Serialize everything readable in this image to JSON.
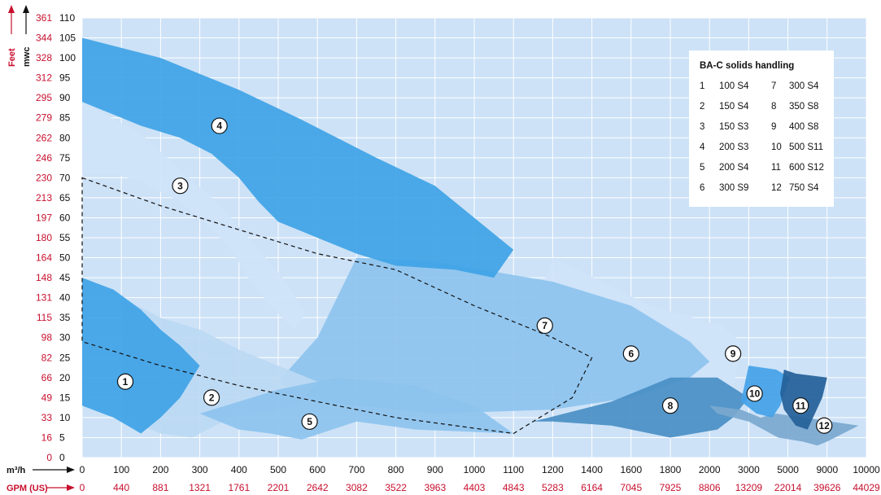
{
  "chart_data": {
    "type": "area",
    "title": "",
    "left_axis_units": [
      "Feet",
      "mwc"
    ],
    "x_axis_units": [
      "m³/h",
      "GPM (US)"
    ],
    "y_mwc_ticks": [
      "0",
      "5",
      "10",
      "15",
      "20",
      "25",
      "30",
      "35",
      "40",
      "45",
      "50",
      "55",
      "60",
      "65",
      "70",
      "75",
      "80",
      "85",
      "90",
      "95",
      "100",
      "105",
      "110"
    ],
    "y_feet_ticks": [
      "0",
      "16",
      "33",
      "49",
      "66",
      "82",
      "98",
      "115",
      "131",
      "148",
      "164",
      "180",
      "197",
      "213",
      "230",
      "246",
      "262",
      "279",
      "295",
      "312",
      "328",
      "344",
      "361"
    ],
    "x_m3h_ticks": [
      "0",
      "100",
      "200",
      "300",
      "400",
      "500",
      "600",
      "700",
      "800",
      "900",
      "1000",
      "1100",
      "1200",
      "1400",
      "1600",
      "1800",
      "2000",
      "3000",
      "5000",
      "9000",
      "10000"
    ],
    "x_gpm_ticks": [
      "0",
      "440",
      "881",
      "1321",
      "1761",
      "2201",
      "2642",
      "3082",
      "3522",
      "3963",
      "4403",
      "4843",
      "5283",
      "6164",
      "7045",
      "7925",
      "8806",
      "13209",
      "22014",
      "39626",
      "44029"
    ],
    "grid": true,
    "legend_position": "top-right",
    "legend": {
      "title": "BA-C solids handling",
      "rows": [
        [
          "1",
          "100 S4",
          "7",
          "300 S4"
        ],
        [
          "2",
          "150 S4",
          "8",
          "350 S8"
        ],
        [
          "3",
          "150 S3",
          "9",
          "400 S8"
        ],
        [
          "4",
          "200 S3",
          "10",
          "500 S11"
        ],
        [
          "5",
          "200 S4",
          "11",
          "600 S12"
        ],
        [
          "6",
          "300 S9",
          "12",
          "750 S4"
        ]
      ]
    },
    "zones": [
      {
        "label": "9",
        "color": "#cfe3f8",
        "points": [
          [
            1200,
            50
          ],
          [
            1700,
            38
          ],
          [
            2300,
            33
          ],
          [
            2800,
            29
          ],
          [
            2500,
            11
          ],
          [
            2000,
            10
          ],
          [
            1500,
            15
          ],
          [
            1100,
            22
          ]
        ],
        "label_at": [
          2600,
          26
        ]
      },
      {
        "label": "6",
        "color": "#8dc3ee",
        "points": [
          [
            700,
            50
          ],
          [
            900,
            49
          ],
          [
            1200,
            44
          ],
          [
            1600,
            38
          ],
          [
            1900,
            29
          ],
          [
            2000,
            24
          ],
          [
            1900,
            20
          ],
          [
            1600,
            15
          ],
          [
            1200,
            12
          ],
          [
            900,
            11
          ],
          [
            600,
            14
          ],
          [
            500,
            19
          ],
          [
            600,
            30
          ]
        ],
        "label_at": [
          1600,
          26
        ]
      },
      {
        "label": "2",
        "color": "#bcd9f3",
        "points": [
          [
            100,
            40
          ],
          [
            200,
            35
          ],
          [
            300,
            32
          ],
          [
            400,
            27
          ],
          [
            500,
            23
          ],
          [
            600,
            19
          ],
          [
            550,
            13
          ],
          [
            380,
            10
          ],
          [
            280,
            5
          ],
          [
            200,
            6
          ],
          [
            150,
            8
          ],
          [
            100,
            10
          ]
        ],
        "label_at": [
          330,
          15
        ]
      },
      {
        "label": "5",
        "color": "#8dc3ee",
        "points": [
          [
            300,
            11
          ],
          [
            500,
            17
          ],
          [
            650,
            20
          ],
          [
            850,
            18
          ],
          [
            1000,
            13
          ],
          [
            1100,
            6
          ],
          [
            850,
            7
          ],
          [
            700,
            9
          ],
          [
            560,
            4.5
          ],
          [
            480,
            6
          ],
          [
            400,
            7
          ]
        ],
        "label_at": [
          580,
          9
        ]
      },
      {
        "label": "3",
        "color": "#cfe3f8",
        "points": [
          [
            0,
            89
          ],
          [
            150,
            81
          ],
          [
            250,
            72
          ],
          [
            320,
            66
          ],
          [
            380,
            60
          ],
          [
            450,
            52
          ],
          [
            520,
            44
          ],
          [
            570,
            36
          ],
          [
            540,
            32
          ],
          [
            480,
            38
          ],
          [
            430,
            44
          ],
          [
            380,
            52
          ],
          [
            330,
            57
          ],
          [
            250,
            64
          ],
          [
            150,
            69
          ],
          [
            80,
            71
          ],
          [
            0,
            71
          ]
        ],
        "label_at": [
          250,
          68
        ]
      },
      {
        "label": "4",
        "color": "#3fa3e6",
        "points": [
          [
            0,
            105
          ],
          [
            200,
            100
          ],
          [
            400,
            92
          ],
          [
            550,
            85
          ],
          [
            750,
            75
          ],
          [
            900,
            68
          ],
          [
            1000,
            60
          ],
          [
            1100,
            52
          ],
          [
            1050,
            45
          ],
          [
            950,
            47
          ],
          [
            800,
            48
          ],
          [
            700,
            51
          ],
          [
            600,
            55
          ],
          [
            500,
            59
          ],
          [
            450,
            64
          ],
          [
            400,
            70
          ],
          [
            330,
            76
          ],
          [
            250,
            80
          ],
          [
            150,
            83
          ],
          [
            0,
            89
          ]
        ],
        "label_at": [
          350,
          83
        ]
      },
      {
        "label": "1",
        "color": "#3fa3e6",
        "points": [
          [
            0,
            45
          ],
          [
            80,
            42
          ],
          [
            150,
            37
          ],
          [
            200,
            32
          ],
          [
            250,
            28
          ],
          [
            300,
            23
          ],
          [
            250,
            15
          ],
          [
            200,
            10
          ],
          [
            150,
            6
          ],
          [
            80,
            10
          ],
          [
            0,
            13
          ]
        ],
        "label_at": [
          110,
          19
        ]
      },
      {
        "label": "8",
        "color": "#4a8fc4",
        "points": [
          [
            1150,
            9
          ],
          [
            1500,
            14
          ],
          [
            1800,
            20
          ],
          [
            2200,
            20
          ],
          [
            3000,
            15
          ],
          [
            2600,
            10
          ],
          [
            2200,
            7
          ],
          [
            1800,
            5
          ],
          [
            1500,
            8
          ],
          [
            1200,
            9
          ]
        ],
        "label_at": [
          1800,
          13
        ]
      },
      {
        "label": "12",
        "color": "#7ba8cf",
        "points": [
          [
            2000,
            13
          ],
          [
            2800,
            12
          ],
          [
            3600,
            10
          ],
          [
            4400,
            11
          ],
          [
            9800,
            8
          ],
          [
            9000,
            4
          ],
          [
            8000,
            3
          ],
          [
            6500,
            4
          ],
          [
            4500,
            5
          ],
          [
            3000,
            9
          ],
          [
            2200,
            11
          ]
        ],
        "label_at": [
          8700,
          8
        ]
      },
      {
        "label": "10",
        "color": "#44a2e8",
        "points": [
          [
            3000,
            23
          ],
          [
            4400,
            22
          ],
          [
            5200,
            20
          ],
          [
            4600,
            13
          ],
          [
            4200,
            10
          ],
          [
            3400,
            11
          ],
          [
            2800,
            14
          ]
        ],
        "label_at": [
          3300,
          16
        ]
      },
      {
        "label": "11",
        "color": "#245f98",
        "points": [
          [
            4800,
            22
          ],
          [
            5800,
            21
          ],
          [
            9000,
            20
          ],
          [
            8500,
            15
          ],
          [
            7000,
            7
          ],
          [
            5800,
            8
          ],
          [
            4800,
            12
          ],
          [
            4600,
            16
          ]
        ],
        "label_at": [
          6300,
          13
        ]
      }
    ],
    "dashed_boundary": [
      [
        0,
        70
      ],
      [
        200,
        63
      ],
      [
        400,
        57
      ],
      [
        600,
        51
      ],
      [
        800,
        47
      ],
      [
        1000,
        38
      ],
      [
        1200,
        30
      ],
      [
        1400,
        25
      ],
      [
        1300,
        15
      ],
      [
        1100,
        6
      ],
      [
        800,
        10
      ],
      [
        600,
        14
      ],
      [
        400,
        18
      ],
      [
        200,
        23
      ],
      [
        0,
        29
      ]
    ],
    "zone7_label": {
      "label": "7",
      "at": [
        1180,
        33
      ]
    }
  }
}
